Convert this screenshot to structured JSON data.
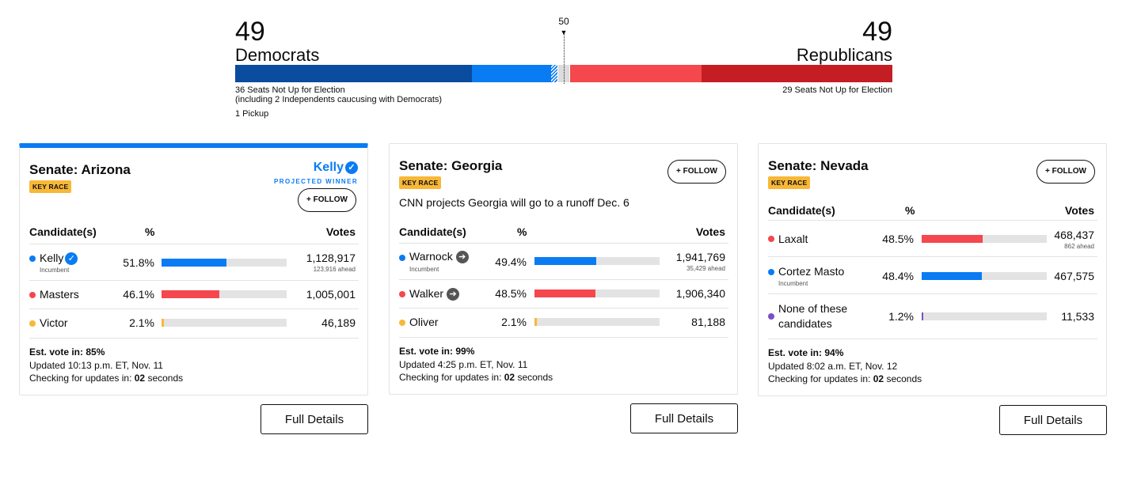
{
  "balance": {
    "dem_count": "49",
    "dem_label": "Democrats",
    "rep_count": "49",
    "rep_label": "Republicans",
    "majority_marker": "50",
    "dem_note_1": "36 Seats Not Up for Election",
    "dem_note_2": "(including 2 Independents caucusing with Democrats)",
    "dem_pickup": "1 Pickup",
    "rep_note": "29 Seats Not Up for Election",
    "colors": {
      "dem_dark": "#0a4c9e",
      "dem_light": "#0a7cf3",
      "rep_light": "#f5474e",
      "rep_dark": "#c51d24"
    }
  },
  "cards": [
    {
      "title": "Senate: Arizona",
      "badge": "KEY RACE",
      "winner_name": "Kelly",
      "winner_label": "PROJECTED WINNER",
      "follow_label": "+ FOLLOW",
      "headers": {
        "candidate": "Candidate(s)",
        "pct": "%",
        "votes": "Votes"
      },
      "candidates": [
        {
          "name": "Kelly",
          "sub": "Incumbent",
          "pct": "51.8%",
          "share": 0.518,
          "votes": "1,128,917",
          "ahead": "123,916 ahead",
          "color": "#0a7cf3",
          "icon": "checkmark-icon"
        },
        {
          "name": "Masters",
          "sub": "",
          "pct": "46.1%",
          "share": 0.461,
          "votes": "1,005,001",
          "ahead": "",
          "color": "#f5474e",
          "icon": ""
        },
        {
          "name": "Victor",
          "sub": "",
          "pct": "2.1%",
          "share": 0.021,
          "votes": "46,189",
          "ahead": "",
          "color": "#f8b837",
          "icon": ""
        }
      ],
      "est_label": "Est. vote in: 85%",
      "updated": "Updated 10:13 p.m. ET, Nov. 11",
      "checking_prefix": "Checking for updates in: ",
      "checking_secs": "02",
      "checking_suffix": " seconds",
      "details_label": "Full Details"
    },
    {
      "title": "Senate: Georgia",
      "badge": "KEY RACE",
      "follow_label": "+ FOLLOW",
      "runoff_text": "CNN projects Georgia will go to a runoff Dec. 6",
      "headers": {
        "candidate": "Candidate(s)",
        "pct": "%",
        "votes": "Votes"
      },
      "candidates": [
        {
          "name": "Warnock",
          "sub": "Incumbent",
          "pct": "49.4%",
          "share": 0.494,
          "votes": "1,941,769",
          "ahead": "35,429 ahead",
          "color": "#0a7cf3",
          "icon": "runoff-arrow-icon"
        },
        {
          "name": "Walker",
          "sub": "",
          "pct": "48.5%",
          "share": 0.485,
          "votes": "1,906,340",
          "ahead": "",
          "color": "#f5474e",
          "icon": "runoff-arrow-icon"
        },
        {
          "name": "Oliver",
          "sub": "",
          "pct": "2.1%",
          "share": 0.021,
          "votes": "81,188",
          "ahead": "",
          "color": "#f8b837",
          "icon": ""
        }
      ],
      "est_label": "Est. vote in: 99%",
      "updated": "Updated 4:25 p.m. ET, Nov. 11",
      "checking_prefix": "Checking for updates in: ",
      "checking_secs": "02",
      "checking_suffix": " seconds",
      "details_label": "Full Details"
    },
    {
      "title": "Senate: Nevada",
      "badge": "KEY RACE",
      "follow_label": "+ FOLLOW",
      "headers": {
        "candidate": "Candidate(s)",
        "pct": "%",
        "votes": "Votes"
      },
      "candidates": [
        {
          "name": "Laxalt",
          "sub": "",
          "pct": "48.5%",
          "share": 0.485,
          "votes": "468,437",
          "ahead": "862 ahead",
          "color": "#f5474e",
          "icon": ""
        },
        {
          "name": "Cortez Masto",
          "sub": "Incumbent",
          "pct": "48.4%",
          "share": 0.484,
          "votes": "467,575",
          "ahead": "",
          "color": "#0a7cf3",
          "icon": ""
        },
        {
          "name_line1": "None of these",
          "name_line2": "candidates",
          "sub": "",
          "pct": "1.2%",
          "share": 0.012,
          "votes": "11,533",
          "ahead": "",
          "color": "#7b4fc4",
          "icon": ""
        }
      ],
      "est_label": "Est. vote in: 94%",
      "updated": "Updated 8:02 a.m. ET, Nov. 12",
      "checking_prefix": "Checking for updates in: ",
      "checking_secs": "02",
      "checking_suffix": " seconds",
      "details_label": "Full Details"
    }
  ]
}
